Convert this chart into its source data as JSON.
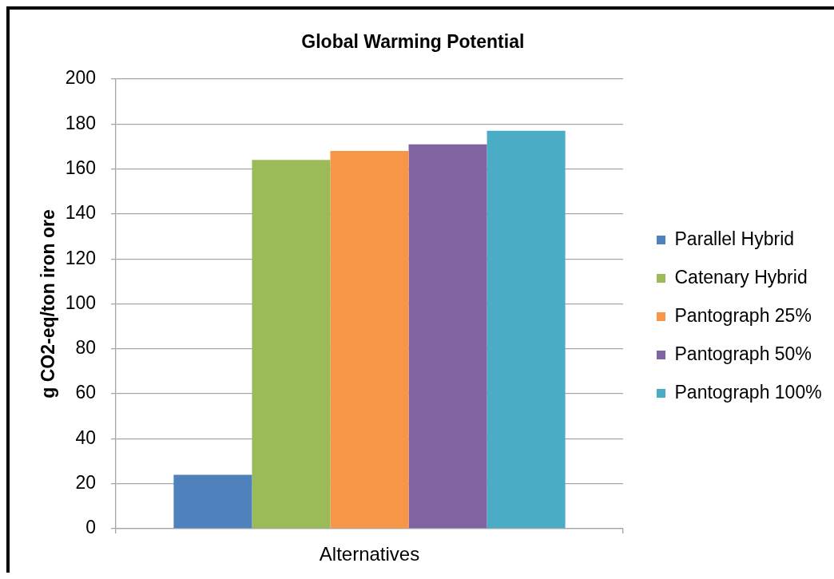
{
  "chart_data": {
    "type": "bar",
    "title": "Global Warming Potential",
    "ylabel": "g CO2-eq/ton iron ore",
    "categories": [
      "Alternatives"
    ],
    "series": [
      {
        "name": "Parallel Hybrid",
        "color": "#4f81bd",
        "values": [
          24
        ]
      },
      {
        "name": "Catenary Hybrid",
        "color": "#9bbb59",
        "values": [
          164
        ]
      },
      {
        "name": "Pantograph 25%",
        "color": "#f79646",
        "values": [
          168
        ]
      },
      {
        "name": "Pantograph 50%",
        "color": "#8064a2",
        "values": [
          171
        ]
      },
      {
        "name": "Pantograph 100%",
        "color": "#4bacc6",
        "values": [
          177
        ]
      }
    ],
    "ylim": [
      0,
      200
    ],
    "yticks": [
      0,
      20,
      40,
      60,
      80,
      100,
      120,
      140,
      160,
      180,
      200
    ],
    "grid": "y",
    "legend": "right"
  }
}
